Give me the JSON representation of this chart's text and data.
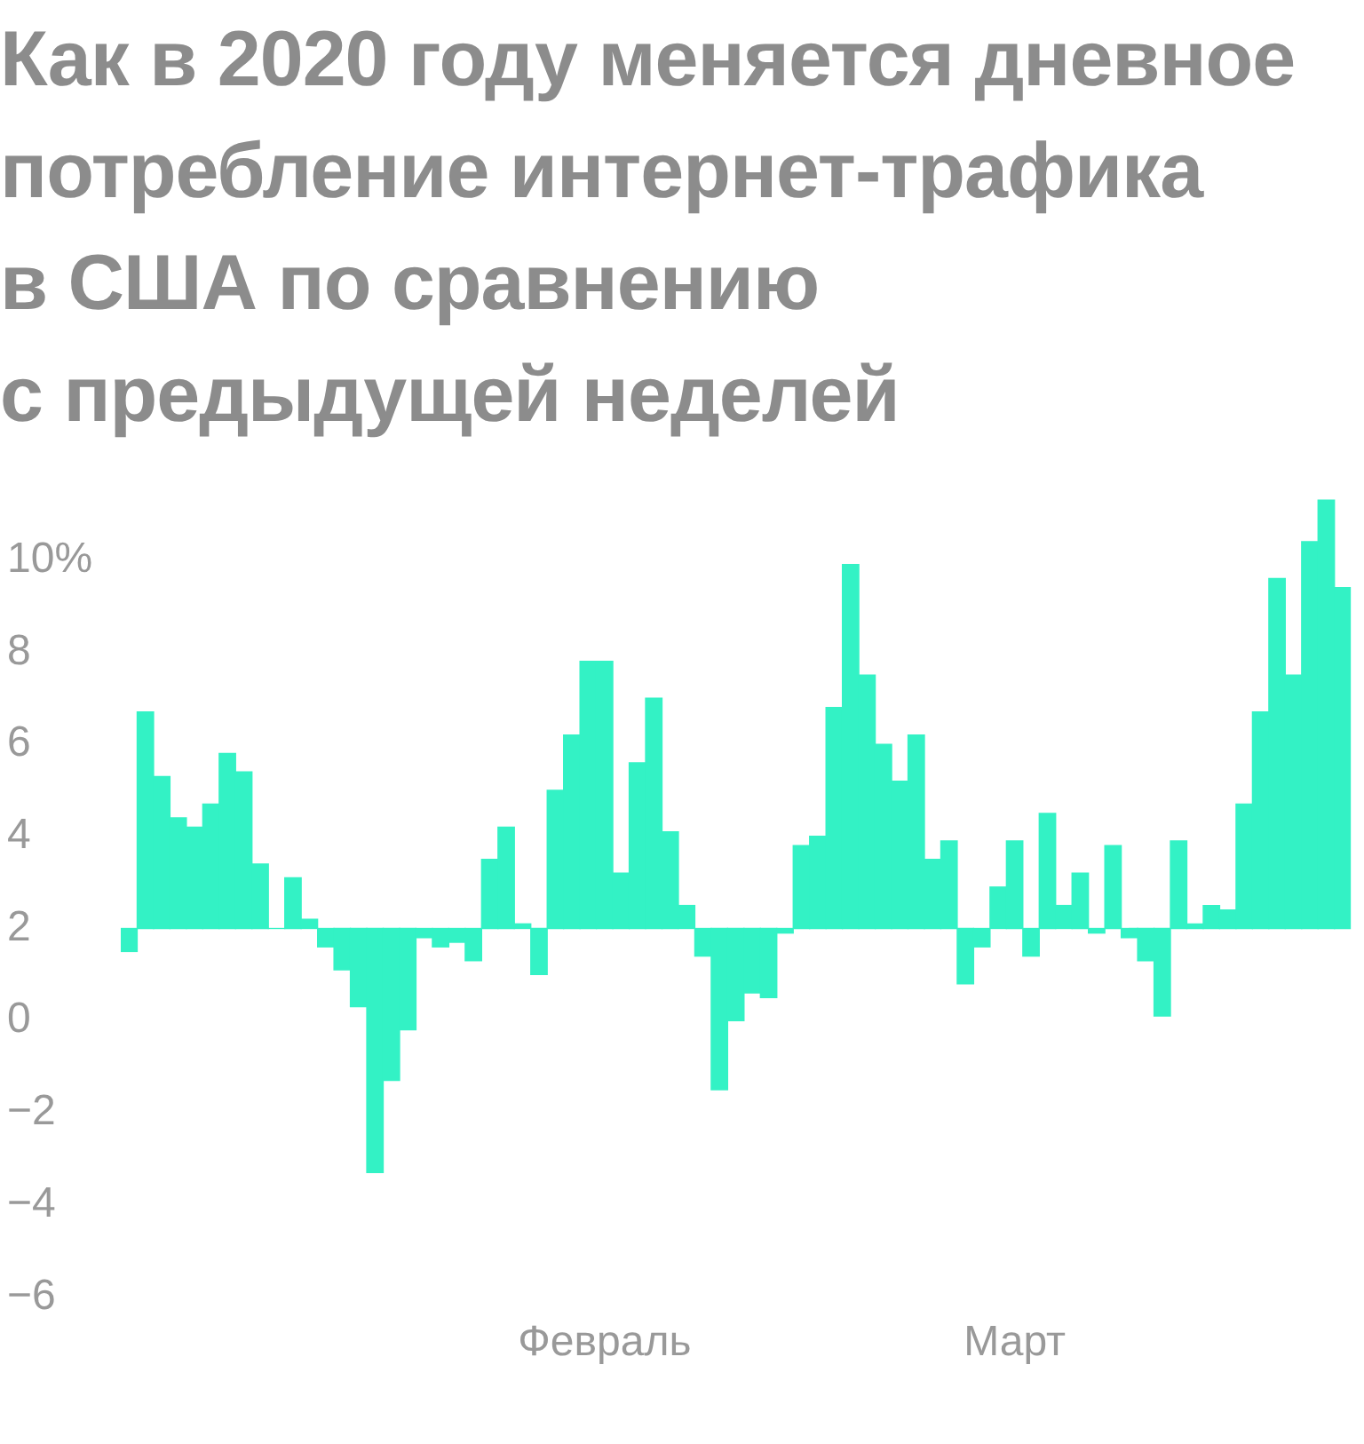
{
  "chart_data": {
    "type": "bar",
    "title": "Как в 2020 году меняется дневное\nпотребление интернет-трафика\nв США по сравнению\nс предыдущей неделей",
    "categories": [
      null,
      null,
      null,
      null,
      null,
      null,
      null,
      null,
      null,
      null,
      null,
      null,
      null,
      null,
      null,
      null,
      null,
      null,
      null,
      null,
      null,
      null,
      null,
      null,
      null,
      null,
      null,
      null,
      null,
      "Февраль",
      null,
      null,
      null,
      null,
      null,
      null,
      null,
      null,
      null,
      null,
      null,
      null,
      null,
      null,
      null,
      null,
      null,
      null,
      null,
      null,
      null,
      null,
      null,
      null,
      "Март",
      null,
      null,
      null,
      null,
      null,
      null,
      null,
      null,
      null,
      null,
      null,
      null,
      null,
      null,
      null,
      null,
      null,
      null,
      null,
      null
    ],
    "values": [
      -0.5,
      4.7,
      3.3,
      2.4,
      2.2,
      2.7,
      3.8,
      3.4,
      1.4,
      0,
      1.1,
      0.2,
      -0.4,
      -0.9,
      -1.7,
      -5.3,
      -3.3,
      -2.2,
      -0.2,
      -0.4,
      -0.3,
      -0.7,
      1.5,
      2.2,
      0.1,
      -1.0,
      3.0,
      4.2,
      5.8,
      5.8,
      1.2,
      3.6,
      5.0,
      2.1,
      0.5,
      -0.6,
      -3.5,
      -2.0,
      -1.4,
      -1.5,
      -0.1,
      1.8,
      2.0,
      4.8,
      7.9,
      5.5,
      4.0,
      3.2,
      4.2,
      1.5,
      1.9,
      -1.2,
      -0.4,
      0.9,
      1.9,
      -0.6,
      2.5,
      0.5,
      1.2,
      -0.1,
      1.8,
      -0.2,
      -0.7,
      -1.9,
      1.9,
      0.1,
      0.5,
      0.4,
      2.7,
      4.7,
      7.6,
      5.5,
      8.4,
      9.3,
      7.4
    ],
    "base": [
      2,
      2,
      2,
      2,
      2,
      2,
      2,
      2,
      2,
      2,
      2,
      2,
      2,
      2,
      2,
      2,
      2,
      2,
      2,
      2,
      2,
      2,
      2,
      2,
      2,
      2,
      2,
      2,
      2,
      2,
      2,
      2,
      2,
      2,
      2,
      2,
      2,
      2,
      2,
      2,
      2,
      2,
      2,
      2,
      2,
      2,
      2,
      2,
      2,
      2,
      2,
      2,
      2,
      2,
      2,
      2,
      2,
      2,
      2,
      2,
      2,
      2,
      2,
      2,
      2,
      2,
      2,
      2,
      2,
      2,
      2,
      2,
      2,
      2,
      2
    ],
    "color": "#33f2c5",
    "ylim": [
      -6,
      11.5
    ],
    "yticks": [
      {
        "value": -6,
        "label": "−6"
      },
      {
        "value": -4,
        "label": "−4"
      },
      {
        "value": -2,
        "label": "−2"
      },
      0,
      2,
      4,
      6,
      8,
      {
        "value": 10,
        "label": "10%"
      }
    ],
    "grid": false,
    "legend": false
  }
}
